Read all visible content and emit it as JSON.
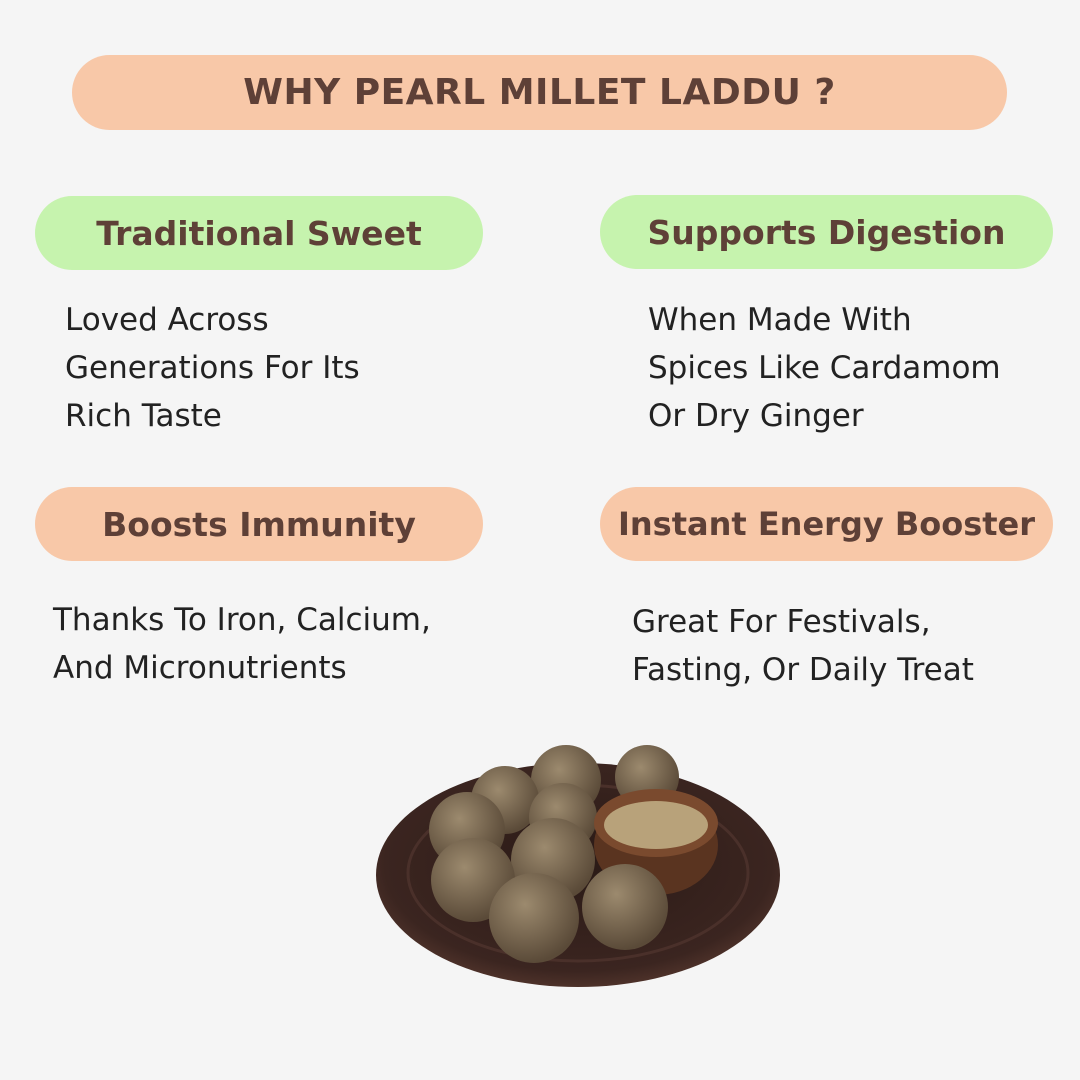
{
  "title": "WHY PEARL MILLET LADDU  ?",
  "benefits": [
    {
      "heading": "Traditional Sweet",
      "color": "#c6f3ae",
      "lines": [
        "Loved Across",
        "Generations For Its",
        "Rich Taste"
      ]
    },
    {
      "heading": "Supports Digestion",
      "color": "#c6f3ae",
      "lines": [
        "When Made With",
        "Spices Like Cardamom",
        "Or Dry Ginger"
      ]
    },
    {
      "heading": "Boosts Immunity",
      "color": "#f8c8a8",
      "lines": [
        "Thanks To Iron, Calcium,",
        "And Micronutrients"
      ]
    },
    {
      "heading": "Instant Energy Booster",
      "color": "#f8c8a8",
      "lines": [
        "Great For Festivals,",
        "Fasting, Or Daily Treat"
      ]
    }
  ],
  "colors": {
    "background": "#f5f5f5",
    "peach": "#f8c8a8",
    "green": "#c6f3ae",
    "heading_text": "#5e4037"
  }
}
